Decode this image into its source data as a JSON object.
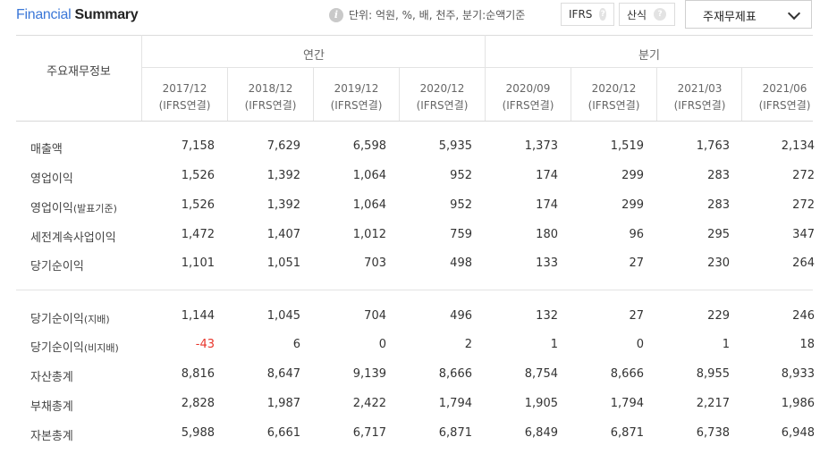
{
  "header": {
    "title_part1": "Financial",
    "title_part2": "Summary",
    "unit_text": "단위: 억원, %, 배, 천주, 분기:순액기준",
    "ifrs_toggle": "IFRS",
    "calc_toggle": "산식",
    "help_glyph": "?",
    "info_glyph": "i",
    "select_value": "주재무제표"
  },
  "table": {
    "corner_label": "주요재무정보",
    "group_annual": "연간",
    "group_quarter": "분기",
    "periods": [
      {
        "date": "2017/12",
        "basis": "(IFRS연결)"
      },
      {
        "date": "2018/12",
        "basis": "(IFRS연결)"
      },
      {
        "date": "2019/12",
        "basis": "(IFRS연결)"
      },
      {
        "date": "2020/12",
        "basis": "(IFRS연결)"
      },
      {
        "date": "2020/09",
        "basis": "(IFRS연결)"
      },
      {
        "date": "2020/12",
        "basis": "(IFRS연결)"
      },
      {
        "date": "2021/03",
        "basis": "(IFRS연결)"
      },
      {
        "date": "2021/06",
        "basis": "(IFRS연결)"
      }
    ],
    "rows": [
      {
        "label": "매출액",
        "sub": "",
        "values": [
          "7,158",
          "7,629",
          "6,598",
          "5,935",
          "1,373",
          "1,519",
          "1,763",
          "2,134"
        ]
      },
      {
        "label": "영업이익",
        "sub": "",
        "values": [
          "1,526",
          "1,392",
          "1,064",
          "952",
          "174",
          "299",
          "283",
          "272"
        ]
      },
      {
        "label": "영업이익",
        "sub": "(발표기준)",
        "values": [
          "1,526",
          "1,392",
          "1,064",
          "952",
          "174",
          "299",
          "283",
          "272"
        ]
      },
      {
        "label": "세전계속사업이익",
        "sub": "",
        "values": [
          "1,472",
          "1,407",
          "1,012",
          "759",
          "180",
          "96",
          "295",
          "347"
        ]
      },
      {
        "label": "당기순이익",
        "sub": "",
        "values": [
          "1,101",
          "1,051",
          "703",
          "498",
          "133",
          "27",
          "230",
          "264"
        ]
      },
      {
        "label": "당기순이익",
        "sub": "(지배)",
        "values": [
          "1,144",
          "1,045",
          "704",
          "496",
          "132",
          "27",
          "229",
          "246"
        ]
      },
      {
        "label": "당기순이익",
        "sub": "(비지배)",
        "values": [
          "-43",
          "6",
          "0",
          "2",
          "1",
          "0",
          "1",
          "18"
        ]
      },
      {
        "label": "자산총계",
        "sub": "",
        "values": [
          "8,816",
          "8,647",
          "9,139",
          "8,666",
          "8,754",
          "8,666",
          "8,955",
          "8,933"
        ]
      },
      {
        "label": "부채총계",
        "sub": "",
        "values": [
          "2,828",
          "1,987",
          "2,422",
          "1,794",
          "1,905",
          "1,794",
          "2,217",
          "1,986"
        ]
      },
      {
        "label": "자본총계",
        "sub": "",
        "values": [
          "5,988",
          "6,661",
          "6,717",
          "6,871",
          "6,849",
          "6,871",
          "6,738",
          "6,948"
        ]
      }
    ],
    "negative_color": "#e8352b"
  }
}
